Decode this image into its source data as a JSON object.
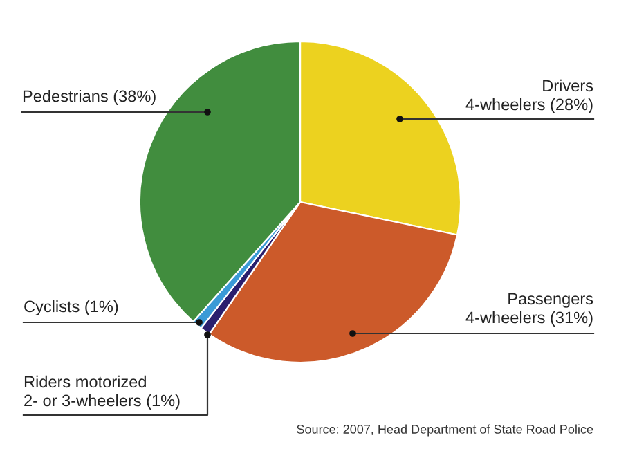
{
  "chart_data": {
    "type": "pie",
    "categories": [
      "Drivers\n4-wheelers",
      "Passengers\n4-wheelers",
      "Riders motorized\n2- or 3-wheelers",
      "Cyclists",
      "Pedestrians"
    ],
    "values": [
      28,
      31,
      1,
      1,
      38
    ],
    "value_labels": [
      "(28%)",
      "(31%)",
      "(1%)",
      "(1%)",
      "(38%)"
    ],
    "colors": [
      "#ecd21f",
      "#cc5a2a",
      "#2a1f6e",
      "#3b9ad6",
      "#418d3e"
    ],
    "annotations": [
      "Source: 2007, Head Department of State Road Police"
    ],
    "legend": false
  }
}
